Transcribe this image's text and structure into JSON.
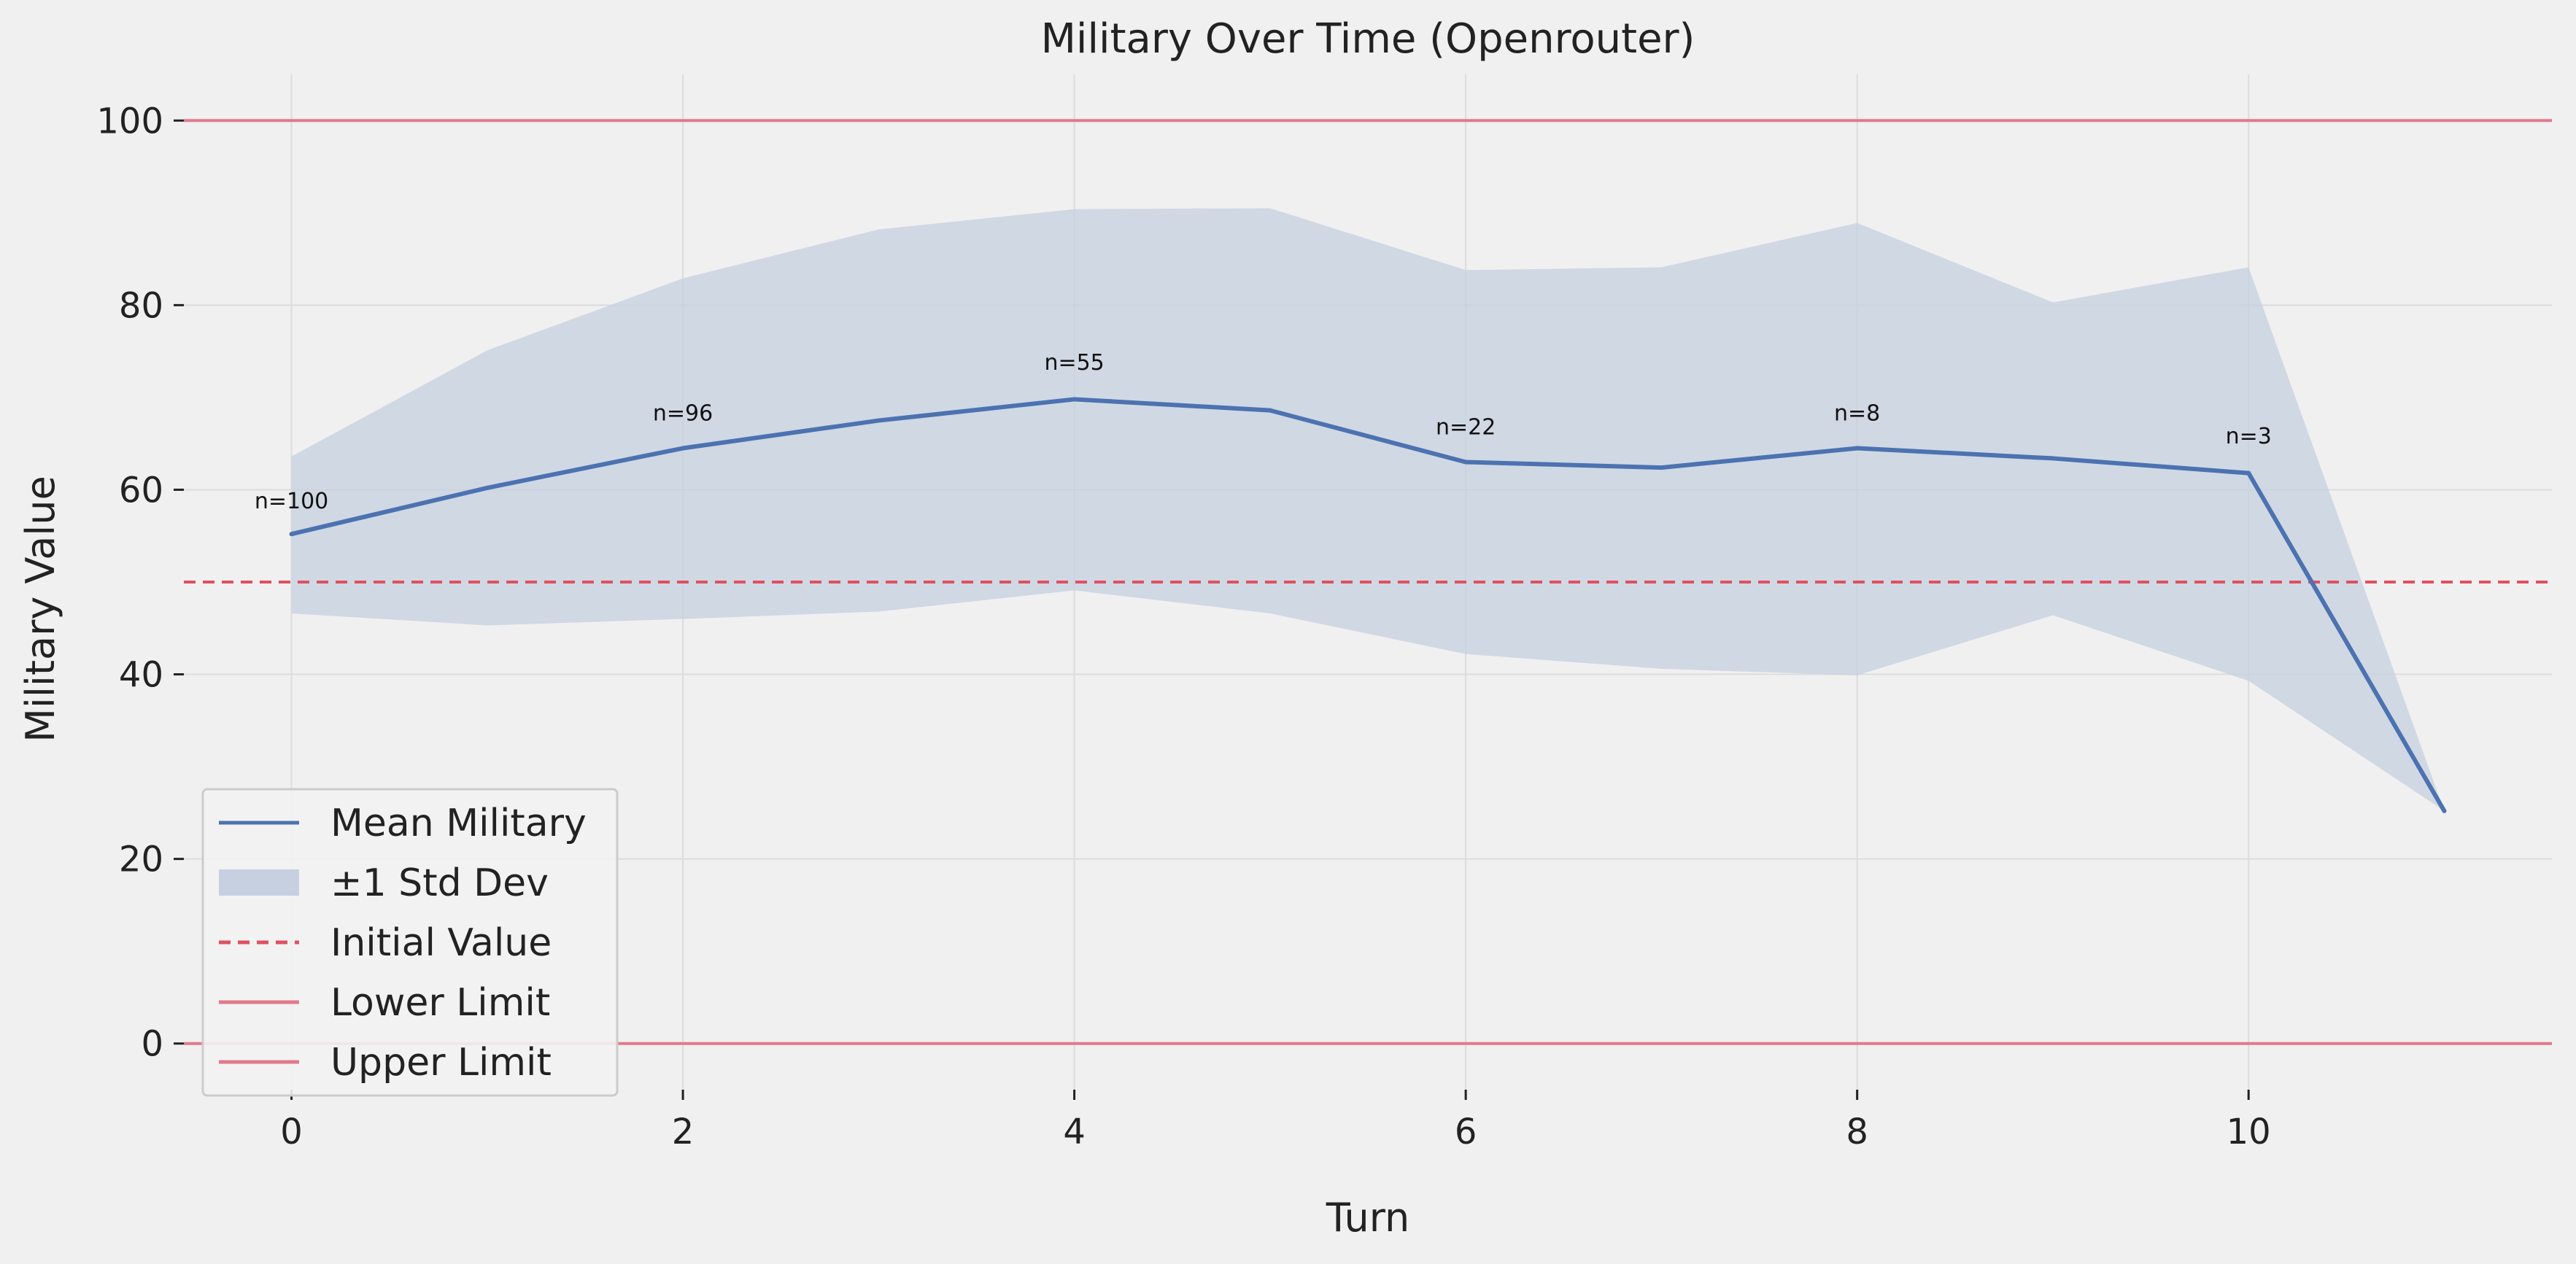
{
  "chart_data": {
    "type": "line",
    "title": "Military Over Time (Openrouter)",
    "xlabel": "Turn",
    "ylabel": "Military Value",
    "xlim": [
      -0.55,
      11.55
    ],
    "ylim": [
      -5,
      105
    ],
    "x_ticks": [
      0,
      2,
      4,
      6,
      8,
      10
    ],
    "y_ticks": [
      0,
      20,
      40,
      60,
      80,
      100
    ],
    "grid": true,
    "legend_position": "lower-left",
    "x": [
      0,
      1,
      2,
      3,
      4,
      5,
      6,
      7,
      8,
      9,
      10,
      11
    ],
    "series": [
      {
        "name": "Mean Military",
        "color": "#4c72b0",
        "values": [
          55.2,
          60.2,
          64.5,
          67.5,
          69.8,
          68.6,
          63.0,
          62.4,
          64.5,
          63.4,
          61.8,
          25.2
        ]
      }
    ],
    "band": {
      "name": "±1 Std Dev",
      "color": "#c6d0e0",
      "upper": [
        63.6,
        75.1,
        82.9,
        88.2,
        90.4,
        90.5,
        83.8,
        84.1,
        88.9,
        80.3,
        84.1,
        25.2
      ],
      "lower": [
        46.6,
        45.3,
        46.0,
        46.8,
        49.1,
        46.6,
        42.2,
        40.6,
        39.9,
        46.4,
        39.3,
        25.2
      ]
    },
    "reference_lines": [
      {
        "name": "Initial Value",
        "y": 50,
        "style": "dashed",
        "color": "#e05060"
      },
      {
        "name": "Lower Limit",
        "y": 0,
        "style": "solid",
        "color": "#e07a8c"
      },
      {
        "name": "Upper Limit",
        "y": 100,
        "style": "solid",
        "color": "#e07a8c"
      }
    ],
    "annotations": [
      {
        "x": 0,
        "y": 58.0,
        "text": "n=100"
      },
      {
        "x": 2,
        "y": 67.5,
        "text": "n=96"
      },
      {
        "x": 4,
        "y": 73.0,
        "text": "n=55"
      },
      {
        "x": 6,
        "y": 66.0,
        "text": "n=22"
      },
      {
        "x": 8,
        "y": 67.5,
        "text": "n=8"
      },
      {
        "x": 10,
        "y": 65.0,
        "text": "n=3"
      }
    ],
    "legend": [
      "Mean Military",
      "±1 Std Dev",
      "Initial Value",
      "Lower Limit",
      "Upper Limit"
    ]
  }
}
